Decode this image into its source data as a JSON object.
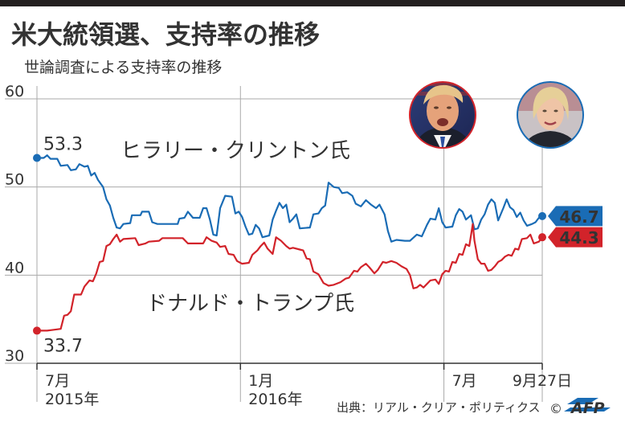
{
  "title": "米大統領選、支持率の推移",
  "subtitle": "世論調査による支持率の推移",
  "source": "出典：リアル・クリア・ポリティクス",
  "credit": "© AFP",
  "chart_data": {
    "type": "line",
    "title": "米大統領選、支持率の推移",
    "subtitle": "世論調査による支持率の推移",
    "xlabel": "",
    "ylabel": "",
    "ylim": [
      30,
      60
    ],
    "y_ticks": [
      30,
      40,
      50,
      60
    ],
    "x_tick_labels": [
      {
        "label": "7月",
        "sublabel": "2015年",
        "x": 0
      },
      {
        "label": "1月",
        "sublabel": "2016年",
        "x": 6
      },
      {
        "label": "7月",
        "sublabel": "",
        "x": 12
      },
      {
        "label": "9月27日",
        "sublabel": "",
        "x": 14.9
      }
    ],
    "series": [
      {
        "name": "ヒラリー・クリントン氏",
        "color": "#1a6cb5",
        "start_label": "53.3",
        "end_label": "46.7",
        "points": [
          [
            0,
            53.3
          ],
          [
            0.2,
            53.3
          ],
          [
            0.3,
            53.6
          ],
          [
            0.4,
            53.2
          ],
          [
            0.6,
            53.2
          ],
          [
            0.7,
            52.4
          ],
          [
            0.9,
            52.5
          ],
          [
            1.0,
            51.9
          ],
          [
            1.15,
            52.0
          ],
          [
            1.25,
            52.6
          ],
          [
            1.4,
            52.3
          ],
          [
            1.5,
            52.4
          ],
          [
            1.6,
            51.3
          ],
          [
            1.7,
            51.6
          ],
          [
            1.8,
            50.8
          ],
          [
            1.95,
            50.0
          ],
          [
            2.05,
            48.6
          ],
          [
            2.15,
            47.9
          ],
          [
            2.25,
            46.5
          ],
          [
            2.35,
            45.4
          ],
          [
            2.45,
            45.3
          ],
          [
            2.55,
            45.8
          ],
          [
            2.75,
            45.9
          ],
          [
            2.8,
            46.8
          ],
          [
            3.05,
            46.8
          ],
          [
            3.1,
            47.2
          ],
          [
            3.3,
            47.2
          ],
          [
            3.4,
            46.0
          ],
          [
            3.55,
            45.8
          ],
          [
            4.15,
            45.8
          ],
          [
            4.2,
            46.4
          ],
          [
            4.35,
            46.5
          ],
          [
            4.45,
            47.2
          ],
          [
            4.6,
            46.5
          ],
          [
            4.8,
            46.5
          ],
          [
            4.9,
            47.6
          ],
          [
            5.0,
            47.6
          ],
          [
            5.1,
            46.3
          ],
          [
            5.2,
            44.6
          ],
          [
            5.3,
            44.5
          ],
          [
            5.4,
            47.6
          ],
          [
            5.55,
            49.0
          ],
          [
            5.75,
            48.9
          ],
          [
            5.85,
            47.0
          ],
          [
            5.95,
            47.2
          ],
          [
            6.05,
            46.6
          ],
          [
            6.15,
            45.5
          ],
          [
            6.25,
            44.6
          ],
          [
            6.35,
            44.7
          ],
          [
            6.45,
            45.7
          ],
          [
            6.55,
            45.3
          ],
          [
            6.65,
            44.3
          ],
          [
            6.85,
            44.5
          ],
          [
            6.95,
            46.3
          ],
          [
            7.05,
            47.3
          ],
          [
            7.15,
            48.2
          ],
          [
            7.25,
            47.6
          ],
          [
            7.35,
            48.0
          ],
          [
            7.45,
            46.0
          ],
          [
            7.55,
            46.4
          ],
          [
            7.65,
            46.9
          ],
          [
            7.75,
            45.3
          ],
          [
            8.05,
            45.4
          ],
          [
            8.15,
            46.9
          ],
          [
            8.3,
            47.0
          ],
          [
            8.4,
            47.6
          ],
          [
            8.5,
            47.9
          ],
          [
            8.6,
            50.5
          ],
          [
            8.75,
            50.0
          ],
          [
            8.9,
            49.9
          ],
          [
            9.0,
            49.3
          ],
          [
            9.15,
            49.4
          ],
          [
            9.3,
            49.0
          ],
          [
            9.4,
            48.1
          ],
          [
            9.55,
            47.8
          ],
          [
            9.7,
            48.5
          ],
          [
            9.85,
            48.0
          ],
          [
            10.0,
            47.6
          ],
          [
            10.1,
            48.0
          ],
          [
            10.25,
            46.9
          ],
          [
            10.35,
            45.0
          ],
          [
            10.45,
            43.8
          ],
          [
            10.6,
            44.0
          ],
          [
            10.85,
            43.9
          ],
          [
            11.0,
            43.9
          ],
          [
            11.2,
            44.6
          ],
          [
            11.35,
            44.4
          ],
          [
            11.5,
            45.7
          ],
          [
            11.6,
            46.4
          ],
          [
            11.75,
            46.3
          ],
          [
            11.85,
            47.6
          ],
          [
            11.95,
            46.0
          ],
          [
            12.05,
            45.4
          ],
          [
            12.25,
            45.5
          ],
          [
            12.35,
            46.8
          ],
          [
            12.45,
            47.5
          ],
          [
            12.55,
            47.2
          ],
          [
            12.65,
            46.3
          ],
          [
            12.8,
            46.8
          ],
          [
            12.9,
            45.2
          ],
          [
            13.0,
            45.3
          ],
          [
            13.1,
            46.3
          ],
          [
            13.2,
            46.9
          ],
          [
            13.3,
            48.0
          ],
          [
            13.4,
            48.6
          ],
          [
            13.5,
            48.2
          ],
          [
            13.6,
            46.2
          ],
          [
            13.75,
            47.6
          ],
          [
            13.85,
            48.6
          ],
          [
            13.95,
            47.7
          ],
          [
            14.05,
            47.4
          ],
          [
            14.15,
            46.6
          ],
          [
            14.25,
            47.1
          ],
          [
            14.35,
            46.2
          ],
          [
            14.45,
            45.6
          ],
          [
            14.6,
            45.8
          ],
          [
            14.7,
            46.0
          ],
          [
            14.8,
            46.5
          ],
          [
            14.9,
            46.7
          ]
        ]
      },
      {
        "name": "ドナルド・トランプ氏",
        "color": "#d2232a",
        "start_label": "33.7",
        "end_label": "44.3",
        "points": [
          [
            0,
            33.7
          ],
          [
            0.3,
            33.7
          ],
          [
            0.5,
            33.8
          ],
          [
            0.7,
            33.9
          ],
          [
            0.8,
            35.4
          ],
          [
            0.9,
            35.5
          ],
          [
            1.0,
            35.9
          ],
          [
            1.1,
            37.8
          ],
          [
            1.3,
            37.8
          ],
          [
            1.4,
            38.7
          ],
          [
            1.55,
            39.4
          ],
          [
            1.65,
            39.3
          ],
          [
            1.75,
            40.2
          ],
          [
            1.85,
            41.5
          ],
          [
            1.95,
            41.6
          ],
          [
            2.05,
            43.3
          ],
          [
            2.15,
            43.5
          ],
          [
            2.25,
            44.1
          ],
          [
            2.35,
            44.6
          ],
          [
            2.45,
            43.8
          ],
          [
            2.55,
            44.1
          ],
          [
            2.9,
            44.2
          ],
          [
            3.0,
            43.4
          ],
          [
            3.2,
            43.6
          ],
          [
            3.3,
            43.8
          ],
          [
            3.6,
            43.9
          ],
          [
            3.7,
            44.2
          ],
          [
            4.3,
            44.2
          ],
          [
            4.45,
            43.6
          ],
          [
            4.9,
            43.6
          ],
          [
            5.0,
            44.3
          ],
          [
            5.15,
            43.9
          ],
          [
            5.3,
            43.7
          ],
          [
            5.4,
            43.2
          ],
          [
            5.55,
            43.3
          ],
          [
            5.65,
            42.4
          ],
          [
            5.8,
            42.3
          ],
          [
            5.9,
            41.6
          ],
          [
            6.05,
            41.3
          ],
          [
            6.25,
            41.4
          ],
          [
            6.35,
            42.3
          ],
          [
            6.5,
            42.8
          ],
          [
            6.6,
            43.3
          ],
          [
            6.7,
            43.7
          ],
          [
            6.8,
            43.0
          ],
          [
            6.95,
            42.4
          ],
          [
            7.05,
            44.3
          ],
          [
            7.2,
            43.9
          ],
          [
            7.35,
            43.3
          ],
          [
            7.45,
            43.0
          ],
          [
            7.55,
            43.1
          ],
          [
            7.75,
            42.9
          ],
          [
            7.85,
            42.8
          ],
          [
            7.95,
            41.9
          ],
          [
            8.05,
            41.8
          ],
          [
            8.15,
            40.4
          ],
          [
            8.3,
            40.1
          ],
          [
            8.45,
            39.1
          ],
          [
            8.6,
            38.8
          ],
          [
            8.75,
            38.9
          ],
          [
            8.95,
            39.2
          ],
          [
            9.1,
            39.6
          ],
          [
            9.2,
            39.7
          ],
          [
            9.35,
            40.5
          ],
          [
            9.45,
            40.4
          ],
          [
            9.55,
            40.9
          ],
          [
            9.7,
            41.3
          ],
          [
            9.8,
            40.9
          ],
          [
            9.95,
            40.2
          ],
          [
            10.05,
            40.6
          ],
          [
            10.2,
            41.5
          ],
          [
            10.3,
            41.4
          ],
          [
            10.45,
            41.6
          ],
          [
            10.6,
            41.4
          ],
          [
            10.75,
            41.0
          ],
          [
            10.9,
            40.7
          ],
          [
            11.0,
            40.0
          ],
          [
            11.1,
            38.5
          ],
          [
            11.2,
            38.6
          ],
          [
            11.3,
            38.9
          ],
          [
            11.4,
            38.6
          ],
          [
            11.6,
            39.4
          ],
          [
            11.75,
            39.5
          ],
          [
            11.85,
            39.0
          ],
          [
            11.95,
            40.1
          ],
          [
            12.05,
            40.5
          ],
          [
            12.15,
            40.4
          ],
          [
            12.25,
            41.5
          ],
          [
            12.35,
            41.4
          ],
          [
            12.45,
            42.4
          ],
          [
            12.55,
            42.3
          ],
          [
            12.65,
            43.5
          ],
          [
            12.75,
            43.3
          ],
          [
            12.85,
            45.8
          ],
          [
            12.9,
            43.9
          ],
          [
            13.0,
            41.8
          ],
          [
            13.1,
            41.3
          ],
          [
            13.2,
            41.3
          ],
          [
            13.3,
            40.5
          ],
          [
            13.4,
            40.6
          ],
          [
            13.5,
            41.0
          ],
          [
            13.6,
            41.5
          ],
          [
            13.7,
            41.7
          ],
          [
            13.8,
            42.1
          ],
          [
            13.9,
            42.3
          ],
          [
            14.0,
            42.2
          ],
          [
            14.1,
            43.0
          ],
          [
            14.2,
            42.9
          ],
          [
            14.3,
            44.1
          ],
          [
            14.45,
            44.2
          ],
          [
            14.55,
            44.6
          ],
          [
            14.65,
            43.6
          ],
          [
            14.8,
            43.8
          ],
          [
            14.9,
            44.3
          ]
        ]
      }
    ]
  }
}
